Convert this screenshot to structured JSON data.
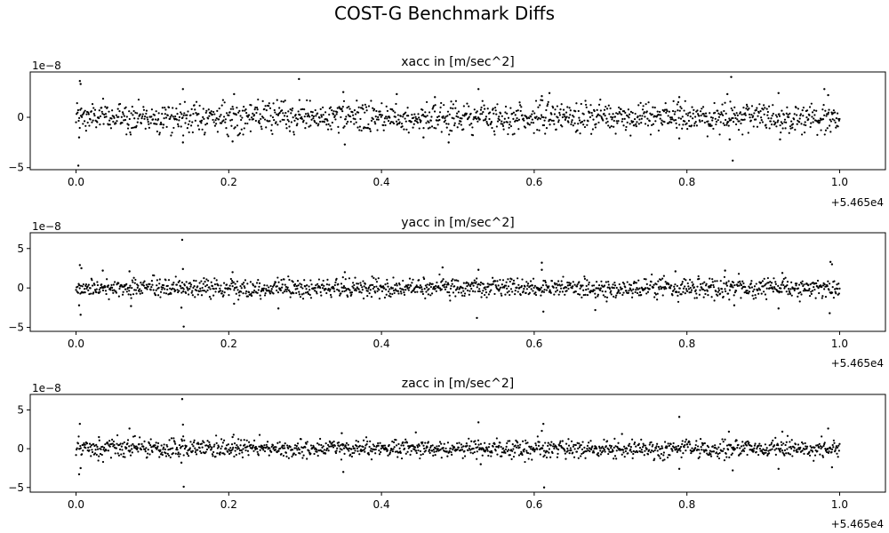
{
  "figure": {
    "suptitle": "COST-G Benchmark Diffs"
  },
  "chart_data": [
    {
      "type": "scatter",
      "title": "xacc in [m/sec^2]",
      "xlabel": "",
      "ylabel": "",
      "x_offset_label": "+5.465e4",
      "y_scale_label": "1e−8",
      "xlim": [
        -0.06,
        1.06
      ],
      "ylim": [
        -5.2,
        4.5
      ],
      "x_ticks": [
        0.0,
        0.2,
        0.4,
        0.6,
        0.8,
        1.0
      ],
      "x_tick_labels": [
        "0.0",
        "0.2",
        "0.4",
        "0.6",
        "0.8",
        "1.0"
      ],
      "y_ticks": [
        -5,
        0
      ],
      "y_tick_labels": [
        "−5",
        "0"
      ],
      "grid": false,
      "marker_color": "#000000",
      "n_points": 1440,
      "x_range": [
        0.0,
        1.0
      ],
      "noise_sigma": 0.75,
      "outliers": [
        {
          "x": 0.005,
          "y": 3.6
        },
        {
          "x": 0.006,
          "y": 3.3
        },
        {
          "x": 0.003,
          "y": -4.8
        },
        {
          "x": 0.004,
          "y": -2.0
        },
        {
          "x": 0.14,
          "y": 2.8
        },
        {
          "x": 0.14,
          "y": -2.5
        },
        {
          "x": 0.205,
          "y": -2.4
        },
        {
          "x": 0.207,
          "y": 2.3
        },
        {
          "x": 0.292,
          "y": 3.8
        },
        {
          "x": 0.352,
          "y": -2.7
        },
        {
          "x": 0.35,
          "y": 2.5
        },
        {
          "x": 0.42,
          "y": 2.3
        },
        {
          "x": 0.455,
          "y": -2.0
        },
        {
          "x": 0.488,
          "y": -2.5
        },
        {
          "x": 0.527,
          "y": 2.8
        },
        {
          "x": 0.47,
          "y": 2.0
        },
        {
          "x": 0.61,
          "y": 2.1
        },
        {
          "x": 0.62,
          "y": 2.4
        },
        {
          "x": 0.79,
          "y": 2.0
        },
        {
          "x": 0.79,
          "y": -2.1
        },
        {
          "x": 0.853,
          "y": 2.3
        },
        {
          "x": 0.858,
          "y": 4.0
        },
        {
          "x": 0.86,
          "y": -4.3
        },
        {
          "x": 0.856,
          "y": -2.2
        },
        {
          "x": 0.922,
          "y": -2.2
        },
        {
          "x": 0.92,
          "y": 2.4
        },
        {
          "x": 0.98,
          "y": 2.8
        },
        {
          "x": 0.985,
          "y": 2.2
        }
      ]
    },
    {
      "type": "scatter",
      "title": "yacc in [m/sec^2]",
      "xlabel": "",
      "ylabel": "",
      "x_offset_label": "+5.465e4",
      "y_scale_label": "1e−8",
      "xlim": [
        -0.06,
        1.06
      ],
      "ylim": [
        -5.5,
        7.0
      ],
      "x_ticks": [
        0.0,
        0.2,
        0.4,
        0.6,
        0.8,
        1.0
      ],
      "x_tick_labels": [
        "0.0",
        "0.2",
        "0.4",
        "0.6",
        "0.8",
        "1.0"
      ],
      "y_ticks": [
        -5,
        0,
        5
      ],
      "y_tick_labels": [
        "−5",
        "0",
        "5"
      ],
      "grid": false,
      "marker_color": "#000000",
      "n_points": 1440,
      "x_range": [
        0.0,
        1.0
      ],
      "noise_sigma": 0.6,
      "outliers": [
        {
          "x": 0.005,
          "y": 2.9
        },
        {
          "x": 0.007,
          "y": 2.5
        },
        {
          "x": 0.004,
          "y": -2.2
        },
        {
          "x": 0.006,
          "y": -3.4
        },
        {
          "x": 0.035,
          "y": 2.2
        },
        {
          "x": 0.07,
          "y": 2.1
        },
        {
          "x": 0.072,
          "y": -2.3
        },
        {
          "x": 0.139,
          "y": 6.1
        },
        {
          "x": 0.14,
          "y": 2.4
        },
        {
          "x": 0.138,
          "y": -2.5
        },
        {
          "x": 0.141,
          "y": -4.9
        },
        {
          "x": 0.205,
          "y": 2.0
        },
        {
          "x": 0.207,
          "y": -2.0
        },
        {
          "x": 0.265,
          "y": -2.6
        },
        {
          "x": 0.352,
          "y": 2.0
        },
        {
          "x": 0.48,
          "y": 2.6
        },
        {
          "x": 0.525,
          "y": -3.8
        },
        {
          "x": 0.527,
          "y": 2.3
        },
        {
          "x": 0.61,
          "y": 3.2
        },
        {
          "x": 0.612,
          "y": -3.0
        },
        {
          "x": 0.61,
          "y": 2.3
        },
        {
          "x": 0.68,
          "y": -2.8
        },
        {
          "x": 0.785,
          "y": 2.1
        },
        {
          "x": 0.85,
          "y": 2.2
        },
        {
          "x": 0.862,
          "y": -2.2
        },
        {
          "x": 0.92,
          "y": -2.6
        },
        {
          "x": 0.925,
          "y": 1.9
        },
        {
          "x": 0.988,
          "y": 3.3
        },
        {
          "x": 0.99,
          "y": 3.0
        },
        {
          "x": 0.987,
          "y": -3.2
        }
      ]
    },
    {
      "type": "scatter",
      "title": "zacc in [m/sec^2]",
      "xlabel": "",
      "ylabel": "",
      "x_offset_label": "+5.465e4",
      "y_scale_label": "1e−8",
      "xlim": [
        -0.06,
        1.06
      ],
      "ylim": [
        -5.6,
        7.0
      ],
      "x_ticks": [
        0.0,
        0.2,
        0.4,
        0.6,
        0.8,
        1.0
      ],
      "x_tick_labels": [
        "0.0",
        "0.2",
        "0.4",
        "0.6",
        "0.8",
        "1.0"
      ],
      "y_ticks": [
        -5,
        0,
        5
      ],
      "y_tick_labels": [
        "−5",
        "0",
        "5"
      ],
      "grid": false,
      "marker_color": "#000000",
      "n_points": 1440,
      "x_range": [
        0.0,
        1.0
      ],
      "noise_sigma": 0.6,
      "outliers": [
        {
          "x": 0.005,
          "y": 3.2
        },
        {
          "x": 0.004,
          "y": -3.3
        },
        {
          "x": 0.006,
          "y": -2.5
        },
        {
          "x": 0.03,
          "y": 1.5
        },
        {
          "x": 0.07,
          "y": 2.6
        },
        {
          "x": 0.139,
          "y": 6.4
        },
        {
          "x": 0.14,
          "y": 3.1
        },
        {
          "x": 0.141,
          "y": -4.9
        },
        {
          "x": 0.138,
          "y": -1.8
        },
        {
          "x": 0.205,
          "y": 1.5
        },
        {
          "x": 0.35,
          "y": -3.0
        },
        {
          "x": 0.348,
          "y": 2.0
        },
        {
          "x": 0.445,
          "y": 2.1
        },
        {
          "x": 0.527,
          "y": 3.4
        },
        {
          "x": 0.53,
          "y": -2.0
        },
        {
          "x": 0.612,
          "y": 3.2
        },
        {
          "x": 0.613,
          "y": -5.0
        },
        {
          "x": 0.61,
          "y": 2.3
        },
        {
          "x": 0.715,
          "y": 1.9
        },
        {
          "x": 0.79,
          "y": 4.1
        },
        {
          "x": 0.79,
          "y": -2.6
        },
        {
          "x": 0.86,
          "y": -2.8
        },
        {
          "x": 0.855,
          "y": 2.2
        },
        {
          "x": 0.92,
          "y": -2.6
        },
        {
          "x": 0.925,
          "y": 2.2
        },
        {
          "x": 0.985,
          "y": 2.6
        },
        {
          "x": 0.99,
          "y": -2.4
        }
      ]
    }
  ]
}
